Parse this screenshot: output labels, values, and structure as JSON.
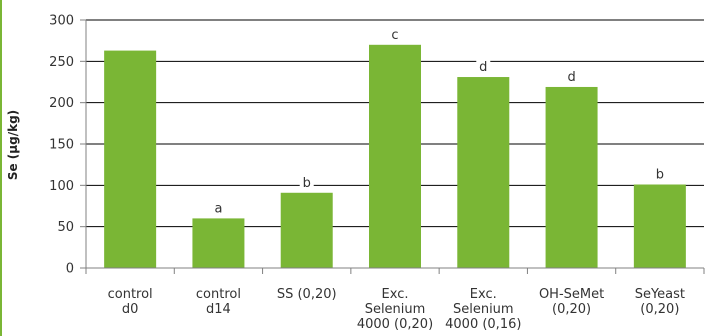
{
  "colors": {
    "bar": "#7ab635",
    "edge_strip": "#7ab635",
    "gridline": "#000000",
    "axis": "#808080",
    "text": "#333333"
  },
  "chart_data": {
    "type": "bar",
    "categories": [
      [
        "control",
        "d0"
      ],
      [
        "control",
        "d14"
      ],
      [
        "SS (0,20)"
      ],
      [
        "Exc.",
        "Selenium",
        "4000 (0,20)"
      ],
      [
        "Exc.",
        "Selenium",
        "4000 (0,16)"
      ],
      [
        "OH-SeMet",
        "(0,20)"
      ],
      [
        "SeYeast",
        "(0,20)"
      ]
    ],
    "values": [
      263,
      60,
      91,
      270,
      231,
      219,
      101
    ],
    "significance_labels": [
      "",
      "a",
      "b",
      "c",
      "d",
      "d",
      "b"
    ],
    "title": "",
    "xlabel": "",
    "ylabel": "Se (µg/kg)",
    "ylim": [
      0,
      300
    ],
    "yticks": [
      0,
      50,
      100,
      150,
      200,
      250,
      300
    ],
    "grid": true,
    "legend": "none"
  }
}
